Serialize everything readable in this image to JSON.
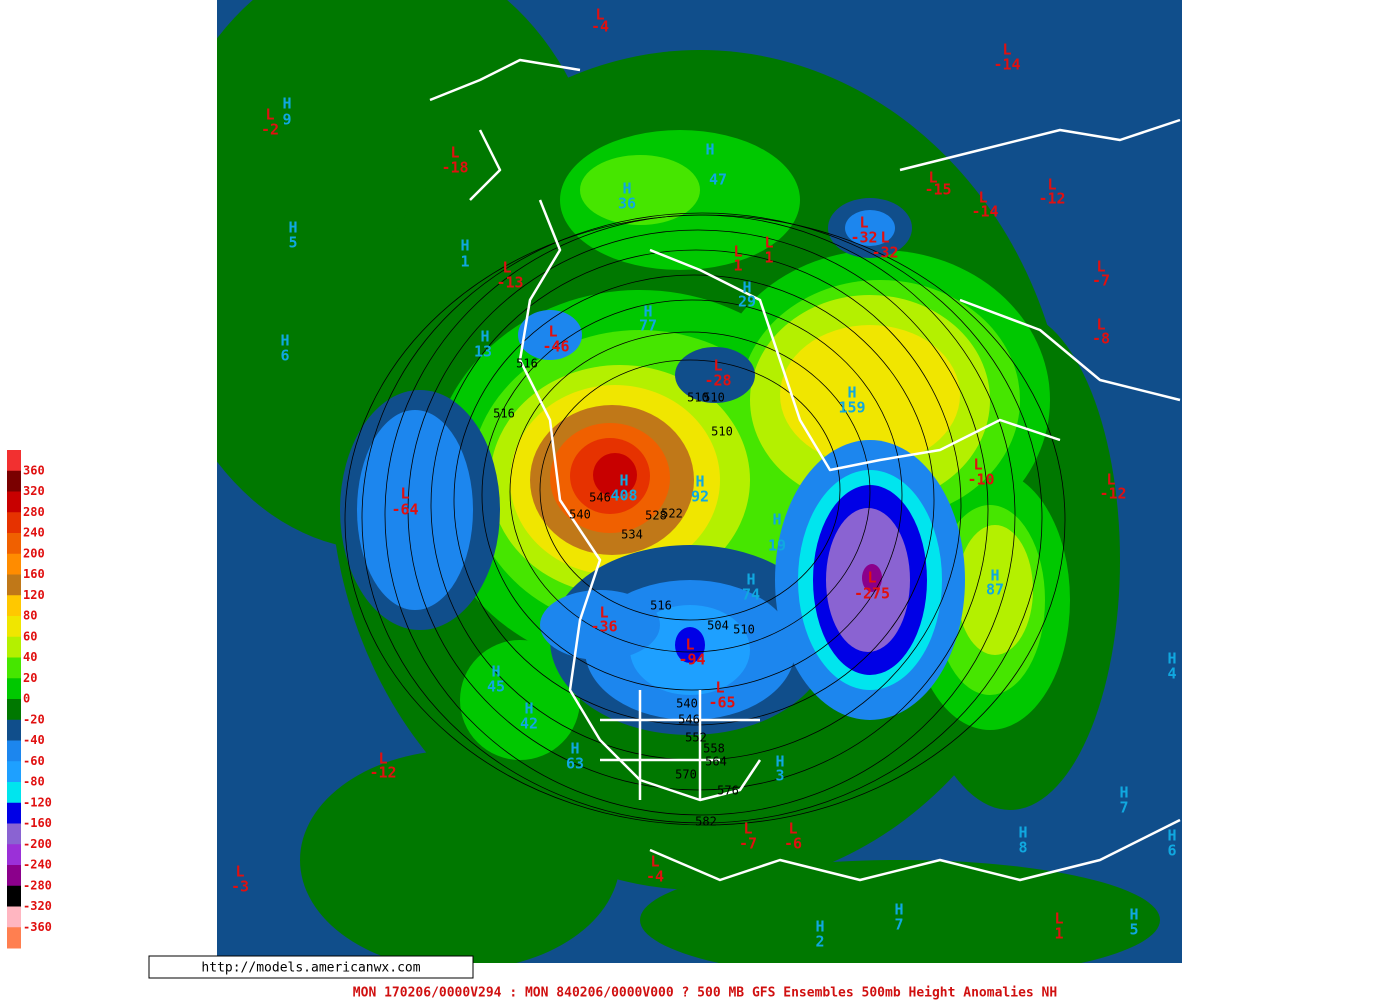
{
  "legend": {
    "colors": [
      "#f23030",
      "#7a0000",
      "#c80000",
      "#e63200",
      "#f06000",
      "#ff8c00",
      "#c07818",
      "#ffc800",
      "#f0e600",
      "#b4f000",
      "#46e600",
      "#00c800",
      "#007800",
      "#104e8b",
      "#1c86ee",
      "#1ea0ff",
      "#00e5ee",
      "#0000e6",
      "#8a63d2",
      "#9b30d8",
      "#8b008b",
      "#000000",
      "#ffb6c1",
      "#ff7f50"
    ],
    "labels": [
      "360",
      "320",
      "280",
      "240",
      "200",
      "160",
      "120",
      "80",
      "60",
      "40",
      "20",
      "0",
      "-20",
      "-40",
      "-60",
      "-80",
      "-120",
      "-160",
      "-200",
      "-240",
      "-280",
      "-320",
      "-360"
    ]
  },
  "centers": [
    {
      "kind": "L",
      "value": "-4"
    },
    {
      "kind": "L",
      "value": "-14"
    },
    {
      "kind": "L",
      "value": "-2"
    },
    {
      "kind": "H",
      "value": "9"
    },
    {
      "kind": "L",
      "value": "-18"
    },
    {
      "kind": "H",
      "value": "5"
    },
    {
      "kind": "H",
      "value": "1"
    },
    {
      "kind": "L",
      "value": "-13"
    },
    {
      "kind": "H",
      "value": "6"
    },
    {
      "kind": "H",
      "value": "13"
    },
    {
      "kind": "L",
      "value": "-46"
    },
    {
      "kind": "H",
      "value": "36"
    },
    {
      "kind": "H",
      "value": "47"
    },
    {
      "kind": "L",
      "value": "1"
    },
    {
      "kind": "L",
      "value": "1"
    },
    {
      "kind": "H",
      "value": "29"
    },
    {
      "kind": "H",
      "value": "77"
    },
    {
      "kind": "L",
      "value": "-28"
    },
    {
      "kind": "L",
      "value": "-32"
    },
    {
      "kind": "L",
      "value": "-32"
    },
    {
      "kind": "L",
      "value": "-15"
    },
    {
      "kind": "L",
      "value": "-14"
    },
    {
      "kind": "L",
      "value": "-12"
    },
    {
      "kind": "L",
      "value": "-7"
    },
    {
      "kind": "L",
      "value": "-8"
    },
    {
      "kind": "H",
      "value": "159"
    },
    {
      "kind": "L",
      "value": "-10"
    },
    {
      "kind": "L",
      "value": "-12"
    },
    {
      "kind": "L",
      "value": "-64"
    },
    {
      "kind": "H",
      "value": "408"
    },
    {
      "kind": "H",
      "value": "92"
    },
    {
      "kind": "H",
      "value": "19"
    },
    {
      "kind": "L",
      "value": "-275"
    },
    {
      "kind": "H",
      "value": "87"
    },
    {
      "kind": "H",
      "value": "74"
    },
    {
      "kind": "L",
      "value": "-36"
    },
    {
      "kind": "L",
      "value": "-94"
    },
    {
      "kind": "L",
      "value": "-65"
    },
    {
      "kind": "H",
      "value": "45"
    },
    {
      "kind": "H",
      "value": "42"
    },
    {
      "kind": "H",
      "value": "63"
    },
    {
      "kind": "L",
      "value": "-12"
    },
    {
      "kind": "H",
      "value": "3"
    },
    {
      "kind": "H",
      "value": "4"
    },
    {
      "kind": "H",
      "value": "7"
    },
    {
      "kind": "H",
      "value": "8"
    },
    {
      "kind": "H",
      "value": "6"
    },
    {
      "kind": "L",
      "value": "-7"
    },
    {
      "kind": "L",
      "value": "-6"
    },
    {
      "kind": "L",
      "value": "-4"
    },
    {
      "kind": "L",
      "value": "-3"
    },
    {
      "kind": "H",
      "value": "2"
    },
    {
      "kind": "H",
      "value": "7"
    },
    {
      "kind": "H",
      "value": "5"
    },
    {
      "kind": "L",
      "value": "1"
    }
  ],
  "contour_labels": [
    "516",
    "516",
    "510",
    "510",
    "510",
    "546",
    "540",
    "528",
    "522",
    "534",
    "516",
    "504",
    "510",
    "540",
    "546",
    "552",
    "558",
    "564",
    "570",
    "576",
    "582"
  ],
  "url": "http://models.americanwx.com",
  "footer": "MON 170206/0000V294 : MON 840206/0000V000  ? 500 MB GFS Ensembles 500mb Height Anomalies NH"
}
